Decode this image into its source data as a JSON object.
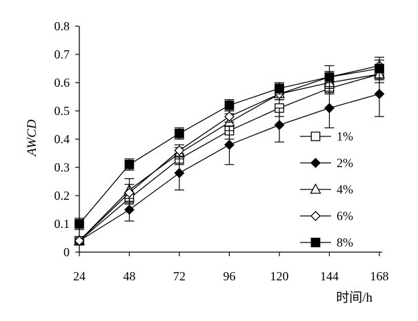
{
  "chart_data": {
    "type": "line",
    "title": "",
    "xlabel": "时间/h",
    "ylabel": "AWCD",
    "x": [
      24,
      48,
      72,
      96,
      120,
      144,
      168
    ],
    "xticks": [
      "24",
      "48",
      "72",
      "96",
      "120",
      "144",
      "168"
    ],
    "ylim": [
      0,
      0.8
    ],
    "yticks": [
      "0",
      "0.1",
      "0.2",
      "0.3",
      "0.4",
      "0.5",
      "0.6",
      "0.7",
      "0.8"
    ],
    "grid": false,
    "legend_position": "right",
    "series": [
      {
        "name": "1%",
        "marker": "square-open",
        "values": [
          0.04,
          0.19,
          0.33,
          0.43,
          0.51,
          0.58,
          0.63
        ],
        "errors": [
          0.01,
          0.02,
          0.02,
          0.03,
          0.03,
          0.02,
          0.02
        ]
      },
      {
        "name": "2%",
        "marker": "diamond-filled",
        "values": [
          0.04,
          0.15,
          0.28,
          0.38,
          0.45,
          0.51,
          0.56
        ],
        "errors": [
          0.01,
          0.04,
          0.06,
          0.07,
          0.06,
          0.07,
          0.08
        ]
      },
      {
        "name": "4%",
        "marker": "triangle-open",
        "values": [
          0.04,
          0.22,
          0.35,
          0.46,
          0.56,
          0.6,
          0.63
        ],
        "errors": [
          0.01,
          0.04,
          0.02,
          0.03,
          0.02,
          0.03,
          0.03
        ]
      },
      {
        "name": "6%",
        "marker": "diamond-open",
        "values": [
          0.04,
          0.21,
          0.36,
          0.48,
          0.56,
          0.62,
          0.66
        ],
        "errors": [
          0.01,
          0.03,
          0.02,
          0.02,
          0.02,
          0.02,
          0.02
        ]
      },
      {
        "name": "8%",
        "marker": "square-filled",
        "values": [
          0.1,
          0.31,
          0.42,
          0.52,
          0.58,
          0.62,
          0.65
        ],
        "errors": [
          0.02,
          0.02,
          0.02,
          0.02,
          0.02,
          0.04,
          0.04
        ]
      }
    ]
  }
}
